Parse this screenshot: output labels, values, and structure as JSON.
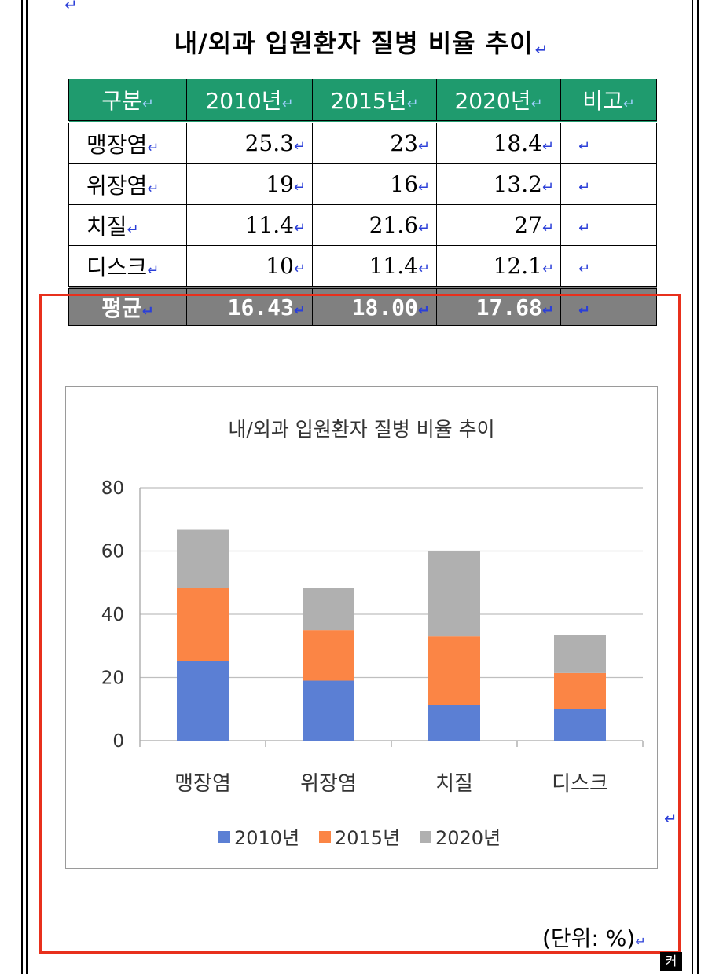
{
  "document": {
    "title": "내/외과 입원환자 질병 비율 추이",
    "unit_note": "(단위: %)",
    "paragraph_mark": "↵",
    "corner_glyph": "커"
  },
  "table": {
    "headers": [
      "구분",
      "2010년",
      "2015년",
      "2020년",
      "비고"
    ],
    "rows": [
      {
        "label": "맹장염",
        "v2010": "25.3",
        "v2015": "23",
        "v2020": "18.4",
        "memo": ""
      },
      {
        "label": "위장염",
        "v2010": "19",
        "v2015": "16",
        "v2020": "13.2",
        "memo": ""
      },
      {
        "label": "치질",
        "v2010": "11.4",
        "v2015": "21.6",
        "v2020": "27",
        "memo": ""
      },
      {
        "label": "디스크",
        "v2010": "10",
        "v2015": "11.4",
        "v2020": "12.1",
        "memo": ""
      }
    ],
    "average": {
      "label": "평균",
      "v2010": "16.43",
      "v2015": "18.00",
      "v2020": "17.68",
      "memo": ""
    }
  },
  "chart_data": {
    "type": "bar",
    "stacked": true,
    "title": "내/외과 입원환자 질병 비율 추이",
    "categories": [
      "맹장염",
      "위장염",
      "치질",
      "디스크"
    ],
    "series": [
      {
        "name": "2010년",
        "values": [
          25.3,
          19,
          11.4,
          10
        ],
        "color": "#5b7fd4"
      },
      {
        "name": "2015년",
        "values": [
          23,
          16,
          21.6,
          11.4
        ],
        "color": "#fb8545"
      },
      {
        "name": "2020년",
        "values": [
          18.4,
          13.2,
          27,
          12.1
        ],
        "color": "#b0b0b0"
      }
    ],
    "ylim": [
      0,
      80
    ],
    "yticks": [
      0,
      20,
      40,
      60,
      80
    ],
    "grid": true,
    "legend": "bottom"
  },
  "colors": {
    "header_green": "#1f9b6e",
    "avg_gray": "#808080",
    "highlight_red": "#e8301c",
    "paragraph_blue": "#2b3fd8"
  }
}
